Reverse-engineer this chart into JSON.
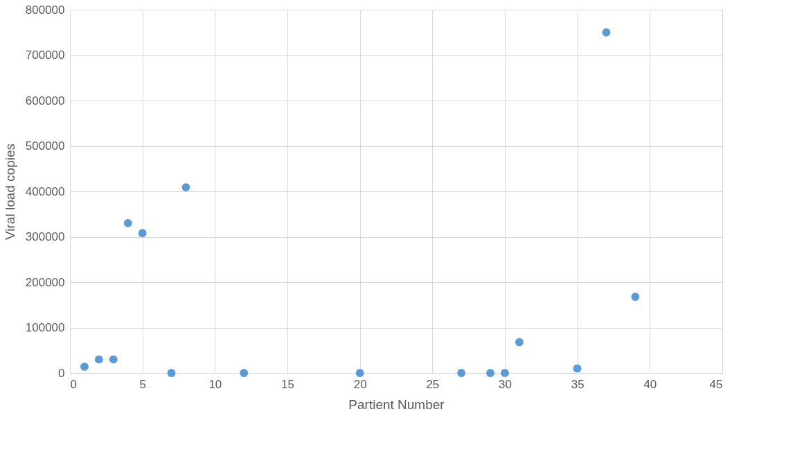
{
  "chart_data": {
    "type": "scatter",
    "xlabel": "Partient Number",
    "ylabel": "Viral load copies",
    "x": [
      1,
      2,
      3,
      4,
      5,
      7,
      8,
      12,
      20,
      27,
      29,
      30,
      31,
      35,
      37,
      39
    ],
    "series": [
      {
        "color": "#5b9bd5",
        "values": [
          14000,
          30000,
          30000,
          330000,
          308000,
          0,
          409000,
          0,
          0,
          0,
          0,
          0,
          68000,
          10000,
          750000,
          168000
        ]
      }
    ],
    "xlim": [
      0,
      45
    ],
    "xticks": [
      0,
      5,
      10,
      15,
      20,
      25,
      30,
      35,
      40,
      45
    ],
    "ylim": [
      0,
      800000
    ],
    "yticks": [
      0,
      100000,
      200000,
      300000,
      400000,
      500000,
      600000,
      700000,
      800000
    ],
    "grid": true,
    "marker": "circle",
    "legend": false
  }
}
